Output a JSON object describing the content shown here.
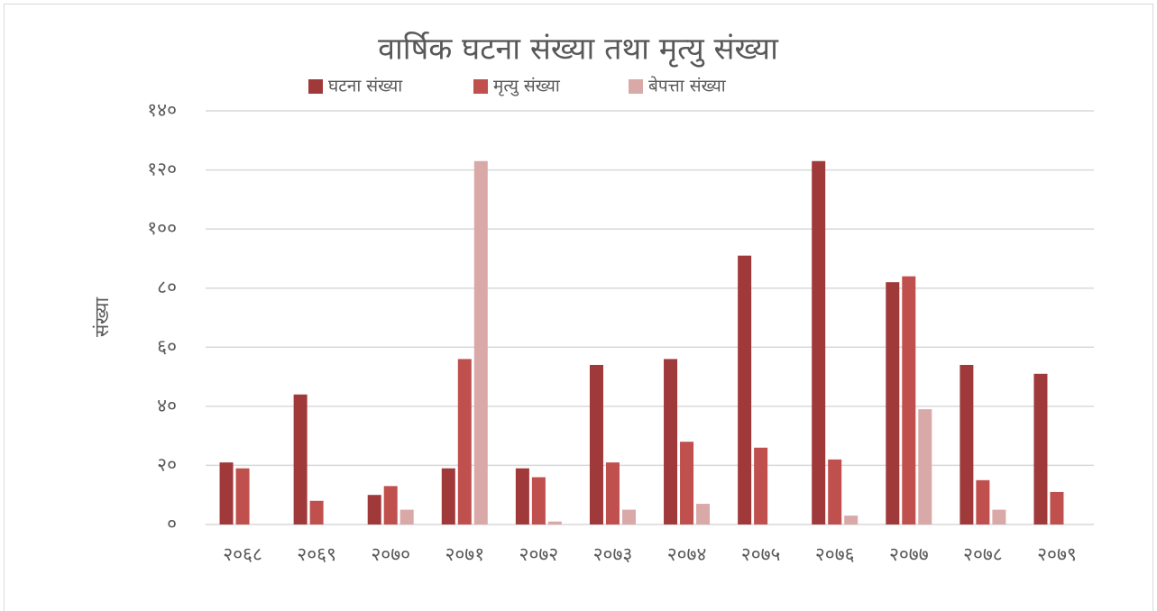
{
  "chart_data": {
    "type": "bar",
    "title": "वार्षिक घटना संख्या तथा मृत्यु संख्या",
    "y_label": "संख्या",
    "categories": [
      "२०६८",
      "२०६९",
      "२०७०",
      "२०७१",
      "२०७२",
      "२०७३",
      "२०७४",
      "२०७५",
      "२०७६",
      "२०७७",
      "२०७८",
      "२०७९"
    ],
    "series": [
      {
        "name": "घटना संख्या",
        "color": "#a0393a",
        "values": [
          21,
          44,
          10,
          19,
          19,
          54,
          56,
          91,
          123,
          82,
          54,
          51
        ]
      },
      {
        "name": "मृत्यु संख्या",
        "color": "#c0504d",
        "values": [
          19,
          8,
          13,
          56,
          16,
          21,
          28,
          26,
          22,
          84,
          15,
          11
        ]
      },
      {
        "name": "बेपत्ता संख्या",
        "color": "#d9a9a8",
        "values": [
          0,
          0,
          5,
          123,
          1,
          5,
          7,
          0,
          3,
          39,
          5,
          0
        ]
      }
    ],
    "ylim": [
      0,
      140
    ],
    "yticks": [
      {
        "value": 0,
        "label": "०"
      },
      {
        "value": 20,
        "label": "२०"
      },
      {
        "value": 40,
        "label": "४०"
      },
      {
        "value": 60,
        "label": "६०"
      },
      {
        "value": 80,
        "label": "८०"
      },
      {
        "value": 100,
        "label": "१००"
      },
      {
        "value": 120,
        "label": "१२०"
      },
      {
        "value": 140,
        "label": "१४०"
      }
    ],
    "grid": true,
    "legend": "top"
  }
}
